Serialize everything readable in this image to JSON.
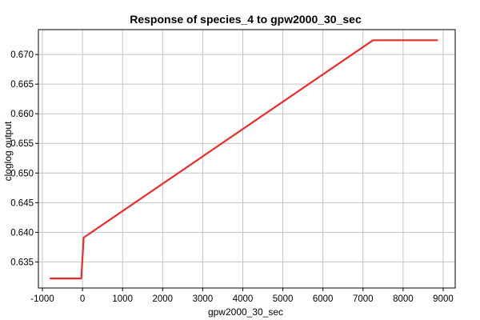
{
  "chart_data": {
    "type": "line",
    "title": "Response of species_4 to gpw2000_30_sec",
    "xlabel": "gpw2000_30_sec",
    "ylabel": "cloglog output",
    "xlim": [
      -1100,
      9300
    ],
    "ylim": [
      0.6306,
      0.6742
    ],
    "x_ticks": [
      -1000,
      0,
      1000,
      2000,
      3000,
      4000,
      5000,
      6000,
      7000,
      8000,
      9000
    ],
    "y_ticks": [
      0.635,
      0.64,
      0.645,
      0.65,
      0.655,
      0.66,
      0.665,
      0.67
    ],
    "grid": true,
    "series": [
      {
        "color": "#ee2a2a",
        "points": [
          [
            -800,
            0.6322
          ],
          [
            -30,
            0.6322
          ],
          [
            30,
            0.6391
          ],
          [
            7250,
            0.6724
          ],
          [
            8850,
            0.6724
          ]
        ]
      }
    ]
  }
}
